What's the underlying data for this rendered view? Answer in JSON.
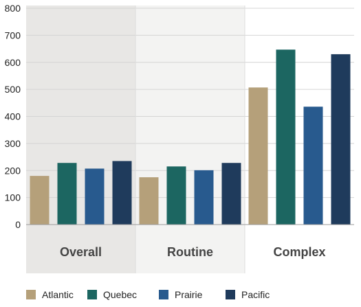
{
  "chart_data": {
    "type": "bar",
    "categories": [
      "Overall",
      "Routine",
      "Complex"
    ],
    "series": [
      {
        "name": "Atlantic",
        "color": "#b5a07a",
        "values": [
          180,
          175,
          507
        ]
      },
      {
        "name": "Quebec",
        "color": "#1c6661",
        "values": [
          228,
          215,
          647
        ]
      },
      {
        "name": "Prairie",
        "color": "#285a8e",
        "values": [
          207,
          201,
          436
        ]
      },
      {
        "name": "Pacific",
        "color": "#1f3b5c",
        "values": [
          235,
          228,
          630
        ]
      }
    ],
    "yticks": [
      "0",
      "100",
      "200",
      "300",
      "400",
      "500",
      "600",
      "700",
      "800"
    ],
    "ylim": [
      0,
      800
    ],
    "grid": true,
    "legend": "bottom",
    "category_backgrounds": [
      "#e8e7e5",
      "#f3f3f2",
      "#ffffff"
    ],
    "title": "",
    "xlabel": "",
    "ylabel": ""
  }
}
